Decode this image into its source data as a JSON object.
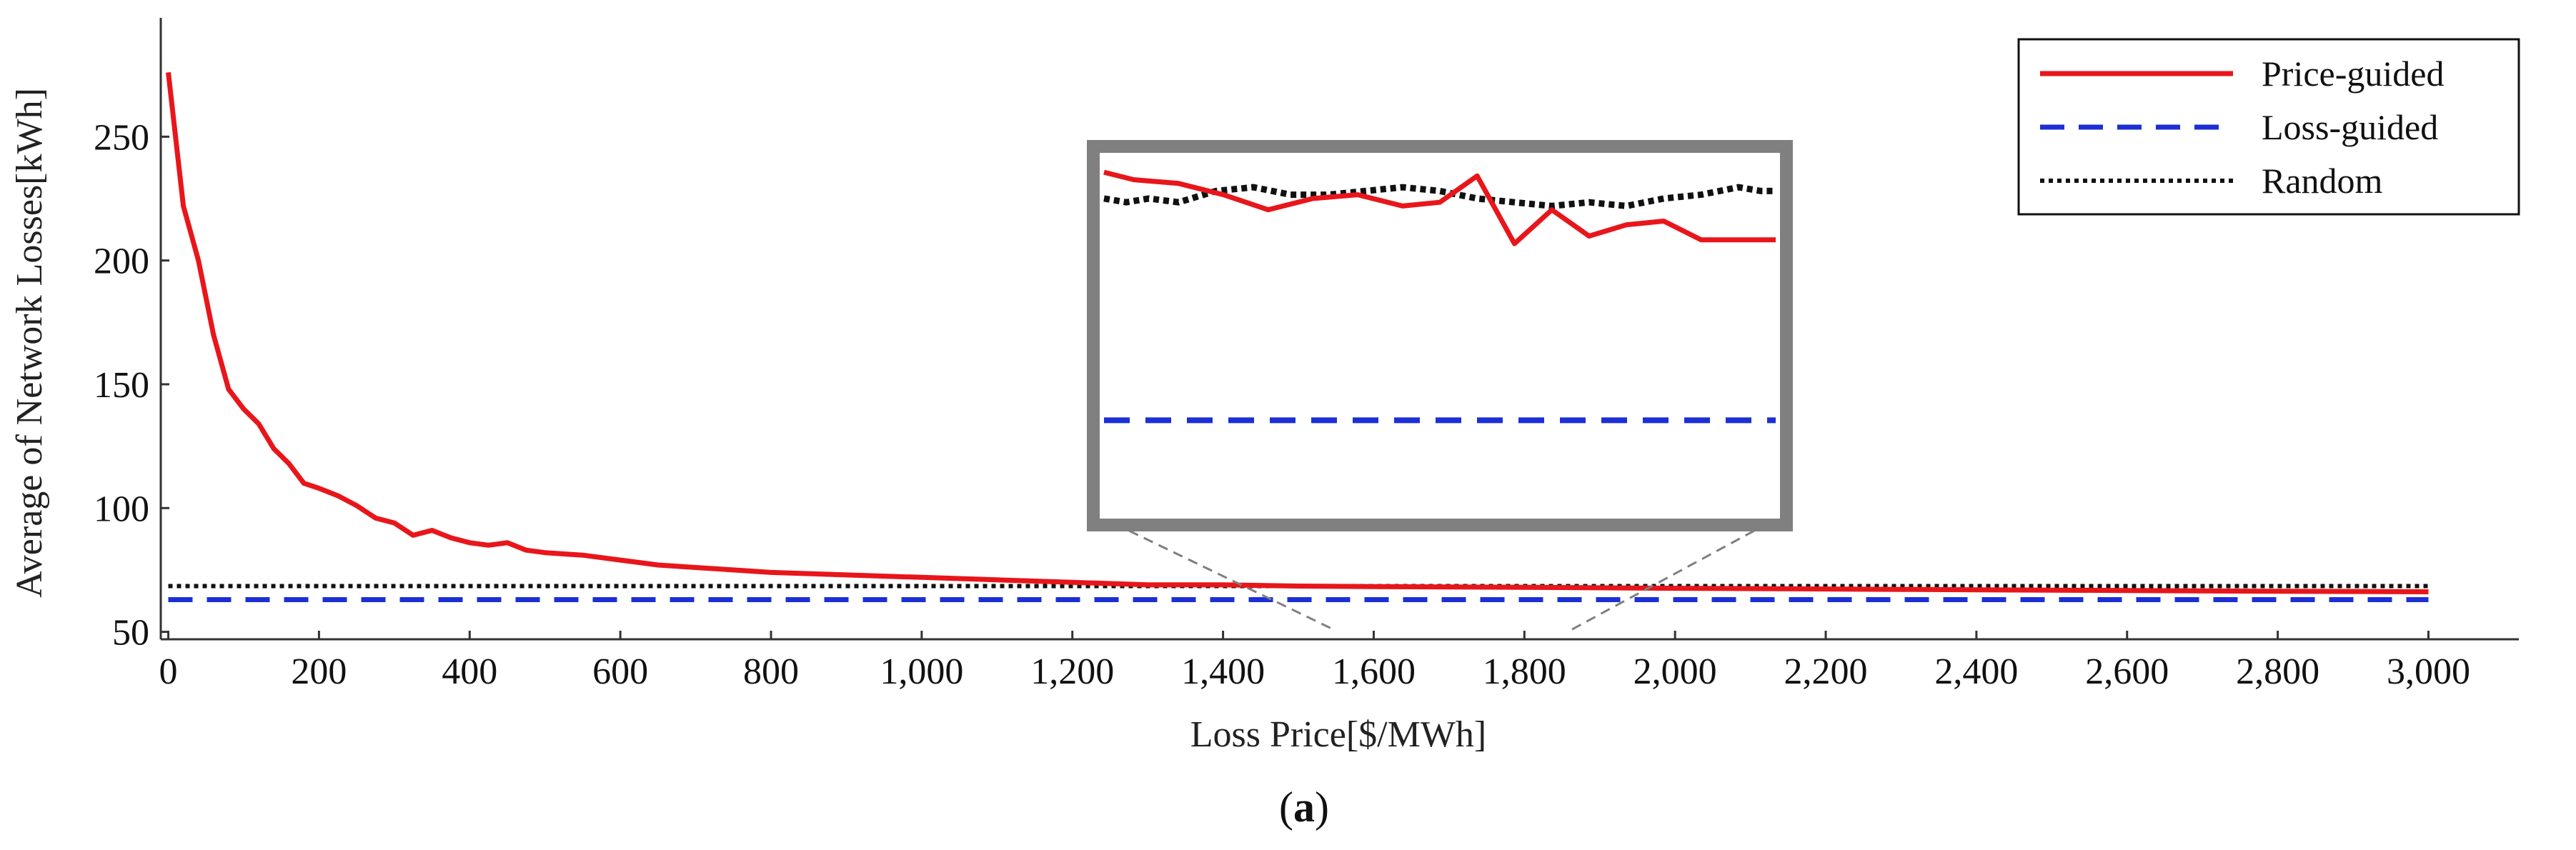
{
  "chart_data": {
    "type": "line",
    "title": "",
    "xlabel": "Loss Price[$/MWh]",
    "ylabel": "Average of Network Losses[kWh]",
    "xlim": [
      -10,
      3120
    ],
    "ylim": [
      47,
      298
    ],
    "xticks": [
      0,
      200,
      400,
      600,
      800,
      1000,
      1200,
      1400,
      1600,
      1800,
      2000,
      2200,
      2400,
      2600,
      2800,
      3000
    ],
    "xtick_labels": [
      "0",
      "200",
      "400",
      "600",
      "800",
      "1,000",
      "1,200",
      "1,400",
      "1,600",
      "1,800",
      "2,000",
      "2,200",
      "2,400",
      "2,600",
      "2,800",
      "3,000"
    ],
    "yticks": [
      50,
      100,
      150,
      200,
      250
    ],
    "ytick_labels": [
      "50",
      "100",
      "150",
      "200",
      "250"
    ],
    "legend_position": "top-right",
    "series": [
      {
        "name": "Price-guided",
        "color": "#e8161b",
        "style": "solid",
        "x": [
          0,
          20,
          40,
          60,
          80,
          100,
          120,
          140,
          160,
          180,
          200,
          225,
          250,
          275,
          300,
          325,
          350,
          375,
          400,
          425,
          450,
          475,
          500,
          550,
          600,
          650,
          700,
          750,
          800,
          900,
          1000,
          1100,
          1200,
          1300,
          1400,
          1500,
          1600,
          1800,
          2000,
          2200,
          2400,
          2600,
          2800,
          3000
        ],
        "values": [
          276,
          222,
          200,
          170,
          148,
          140,
          134,
          124,
          118,
          110,
          108,
          105,
          101,
          96,
          94,
          89,
          91,
          88,
          86,
          85,
          86,
          83,
          82,
          81,
          79,
          77,
          76,
          75,
          74,
          73,
          72,
          71,
          70,
          69,
          69,
          68.5,
          68.3,
          68,
          67.6,
          67.3,
          67,
          66.7,
          66.4,
          66.2
        ]
      },
      {
        "name": "Loss-guided",
        "color": "#1c2fd6",
        "style": "dashed",
        "x": [
          0,
          3000
        ],
        "values": [
          63,
          63
        ]
      },
      {
        "name": "Random",
        "color": "#111111",
        "style": "dotted",
        "x": [
          0,
          3000
        ],
        "values": [
          68.5,
          68.5
        ]
      }
    ],
    "inset": {
      "x": [
        1550,
        1600,
        1650,
        1700,
        1750,
        1800,
        1850,
        1900,
        1950,
        2000
      ],
      "xlim": [
        1550,
        2000
      ],
      "ylim": [
        60.5,
        70.0
      ],
      "series": [
        {
          "name": "Price-guided",
          "x": [
            1550,
            1570,
            1600,
            1630,
            1660,
            1690,
            1720,
            1750,
            1775,
            1800,
            1825,
            1850,
            1875,
            1900,
            1925,
            1950,
            1975,
            2000
          ],
          "values": [
            69.6,
            69.4,
            69.3,
            69.0,
            68.6,
            68.9,
            69.0,
            68.7,
            68.8,
            69.5,
            67.7,
            68.6,
            67.9,
            68.2,
            68.3,
            67.8,
            67.8,
            67.8
          ]
        },
        {
          "name": "Random",
          "x": [
            1550,
            1565,
            1580,
            1600,
            1625,
            1650,
            1675,
            1700,
            1725,
            1750,
            1775,
            1800,
            1825,
            1850,
            1875,
            1900,
            1925,
            1950,
            1975,
            1990,
            2000
          ],
          "values": [
            68.9,
            68.8,
            68.9,
            68.8,
            69.1,
            69.2,
            69.0,
            69.0,
            69.1,
            69.2,
            69.1,
            68.9,
            68.8,
            68.7,
            68.8,
            68.7,
            68.9,
            69.0,
            69.2,
            69.1,
            69.1
          ]
        },
        {
          "name": "Loss-guided",
          "x": [
            1550,
            2000
          ],
          "values": [
            63.0,
            63.0
          ]
        }
      ]
    },
    "caption": "(a)"
  }
}
